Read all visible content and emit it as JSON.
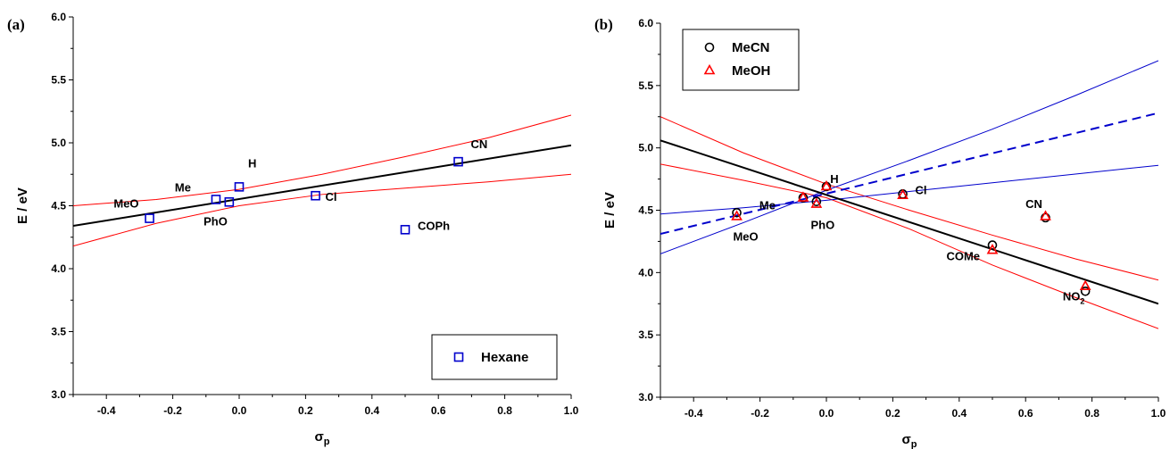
{
  "chart_data": [
    {
      "type": "scatter",
      "panel_label": "(a)",
      "xlabel": "σ",
      "xlabel_sub": "p",
      "ylabel": "E / eV",
      "xlim": [
        -0.5,
        1.0
      ],
      "ylim": [
        3.0,
        6.0
      ],
      "xticks": [
        "-0.4",
        "-0.2",
        "0.0",
        "0.2",
        "0.4",
        "0.6",
        "0.8",
        "1.0"
      ],
      "yticks": [
        "3.0",
        "3.5",
        "4.0",
        "4.5",
        "5.0",
        "5.5",
        "6.0"
      ],
      "legend": {
        "position": "bottom-right",
        "entries": [
          {
            "name": "Hexane",
            "marker": "square",
            "color": "#0000cc"
          }
        ]
      },
      "series": [
        {
          "name": "Hexane",
          "marker": "square",
          "color": "#0000cc",
          "points": [
            {
              "label": "MeO",
              "x": -0.27,
              "y": 4.4
            },
            {
              "label": "Me",
              "x": -0.07,
              "y": 4.55
            },
            {
              "label": "PhO",
              "x": -0.03,
              "y": 4.53
            },
            {
              "label": "H",
              "x": 0.0,
              "y": 4.65
            },
            {
              "label": "Cl",
              "x": 0.23,
              "y": 4.58
            },
            {
              "label": "COPh",
              "x": 0.5,
              "y": 4.31
            },
            {
              "label": "CN",
              "x": 0.66,
              "y": 4.85
            }
          ]
        }
      ],
      "fit": {
        "x": [
          -0.5,
          1.0
        ],
        "y": [
          4.34,
          4.98
        ],
        "color": "#000000",
        "style": "solid"
      },
      "confidence_bands": [
        {
          "x": [
            -0.5,
            -0.25,
            0.0,
            0.25,
            0.5,
            0.75,
            1.0
          ],
          "y": [
            4.5,
            4.55,
            4.63,
            4.75,
            4.89,
            5.04,
            5.22
          ],
          "color": "#ff0000"
        },
        {
          "x": [
            -0.5,
            -0.25,
            0.0,
            0.25,
            0.5,
            0.75,
            1.0
          ],
          "y": [
            4.18,
            4.36,
            4.5,
            4.59,
            4.64,
            4.69,
            4.75
          ],
          "color": "#ff0000"
        }
      ]
    },
    {
      "type": "scatter",
      "panel_label": "(b)",
      "xlabel": "σ",
      "xlabel_sub": "p",
      "ylabel": "E / eV",
      "xlim": [
        -0.5,
        1.0
      ],
      "ylim": [
        3.0,
        6.0
      ],
      "xticks": [
        "-0.4",
        "-0.2",
        "0.0",
        "0.2",
        "0.4",
        "0.6",
        "0.8",
        "1.0"
      ],
      "yticks": [
        "3.0",
        "3.5",
        "4.0",
        "4.5",
        "5.0",
        "5.5",
        "6.0"
      ],
      "legend": {
        "position": "top-left",
        "entries": [
          {
            "name": "MeCN",
            "marker": "circle",
            "color": "#000000"
          },
          {
            "name": "MeOH",
            "marker": "triangle",
            "color": "#ff0000"
          }
        ]
      },
      "series": [
        {
          "name": "MeCN",
          "marker": "circle",
          "color": "#000000",
          "points": [
            {
              "x": -0.27,
              "y": 4.48
            },
            {
              "x": -0.07,
              "y": 4.6
            },
            {
              "x": -0.03,
              "y": 4.57
            },
            {
              "x": 0.0,
              "y": 4.69
            },
            {
              "x": 0.23,
              "y": 4.63
            },
            {
              "x": 0.5,
              "y": 4.22
            },
            {
              "x": 0.66,
              "y": 4.44
            },
            {
              "x": 0.78,
              "y": 3.85
            }
          ]
        },
        {
          "name": "MeOH",
          "marker": "triangle",
          "color": "#ff0000",
          "points": [
            {
              "x": -0.27,
              "y": 4.45
            },
            {
              "x": -0.07,
              "y": 4.6
            },
            {
              "x": -0.03,
              "y": 4.55
            },
            {
              "x": 0.0,
              "y": 4.69
            },
            {
              "x": 0.23,
              "y": 4.62
            },
            {
              "x": 0.5,
              "y": 4.18
            },
            {
              "x": 0.66,
              "y": 4.45
            },
            {
              "x": 0.78,
              "y": 3.89
            }
          ]
        }
      ],
      "point_labels": [
        {
          "text": "MeO",
          "x": -0.27,
          "y": 4.48
        },
        {
          "text": "Me",
          "x": -0.07,
          "y": 4.6
        },
        {
          "text": "PhO",
          "x": -0.03,
          "y": 4.57
        },
        {
          "text": "H",
          "x": 0.0,
          "y": 4.69
        },
        {
          "text": "Cl",
          "x": 0.23,
          "y": 4.63
        },
        {
          "text": "COMe",
          "x": 0.5,
          "y": 4.22
        },
        {
          "text": "CN",
          "x": 0.66,
          "y": 4.44
        },
        {
          "text": "NO",
          "sub": "2",
          "x": 0.78,
          "y": 3.85
        }
      ],
      "fits": [
        {
          "x": [
            -0.5,
            1.0
          ],
          "y": [
            5.06,
            3.75
          ],
          "color": "#000000",
          "style": "solid"
        },
        {
          "x": [
            -0.5,
            1.0
          ],
          "y": [
            4.31,
            5.28
          ],
          "color": "#0000cc",
          "style": "dashed"
        }
      ],
      "confidence_bands": [
        {
          "x": [
            -0.5,
            -0.25,
            0.0,
            0.25,
            0.5,
            0.75,
            1.0
          ],
          "y": [
            5.25,
            4.96,
            4.71,
            4.5,
            4.3,
            4.11,
            3.94
          ],
          "color": "#ff0000"
        },
        {
          "x": [
            -0.5,
            -0.25,
            0.0,
            0.25,
            0.5,
            0.75,
            1.0
          ],
          "y": [
            4.87,
            4.74,
            4.6,
            4.35,
            4.06,
            3.8,
            3.55
          ],
          "color": "#ff0000"
        },
        {
          "x": [
            -0.5,
            -0.25,
            0.0,
            0.25,
            0.5,
            0.75,
            1.0
          ],
          "y": [
            4.15,
            4.4,
            4.66,
            4.9,
            5.15,
            5.42,
            5.7
          ],
          "color": "#0000cc"
        },
        {
          "x": [
            -0.5,
            -0.25,
            0.0,
            0.25,
            0.5,
            0.75,
            1.0
          ],
          "y": [
            4.47,
            4.52,
            4.58,
            4.65,
            4.72,
            4.79,
            4.86
          ],
          "color": "#0000cc"
        }
      ]
    }
  ]
}
